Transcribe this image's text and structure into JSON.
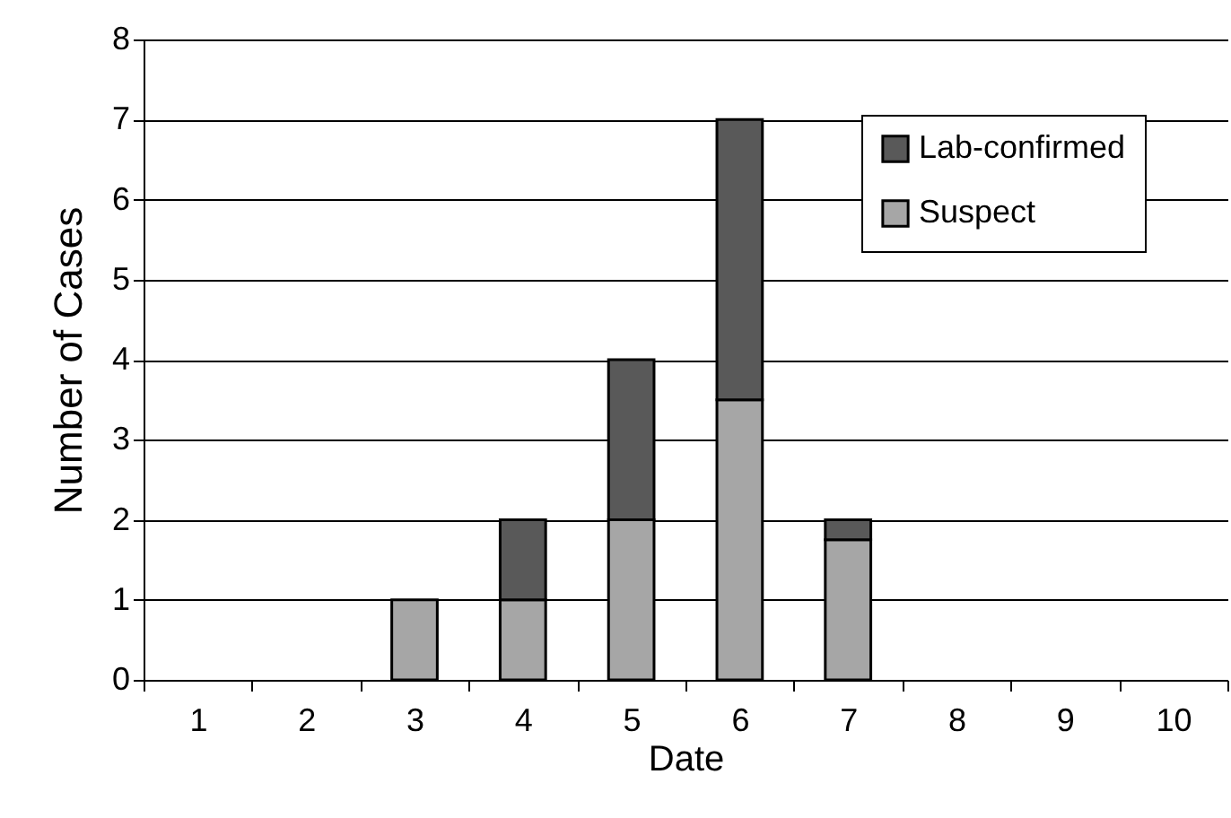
{
  "chart_data": {
    "type": "bar",
    "stacked": true,
    "xlabel": "Date",
    "ylabel": "Number of Cases",
    "categories": [
      "1",
      "2",
      "3",
      "4",
      "5",
      "6",
      "7",
      "8",
      "9",
      "10"
    ],
    "series": [
      {
        "name": "Suspect",
        "color": "#a6a6a6",
        "values": [
          0,
          0,
          1,
          1,
          2,
          3.5,
          1.75,
          0,
          0,
          0
        ]
      },
      {
        "name": "Lab-confirmed",
        "color": "#595959",
        "values": [
          0,
          0,
          0,
          1,
          2,
          3.5,
          0.25,
          0,
          0,
          0
        ]
      }
    ],
    "ylim": [
      0,
      8
    ],
    "yticks": [
      0,
      1,
      2,
      3,
      4,
      5,
      6,
      7,
      8
    ],
    "grid": "y",
    "legend": "top right"
  }
}
